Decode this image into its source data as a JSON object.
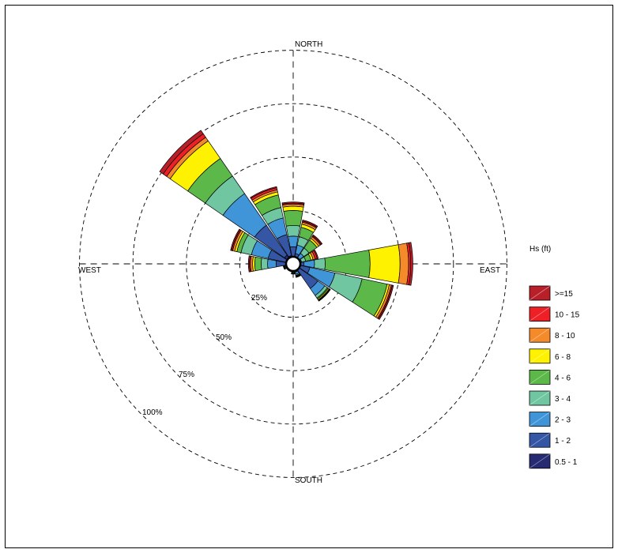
{
  "chart_data": {
    "type": "wind-rose",
    "directions": [
      "N",
      "NNE",
      "NE",
      "ENE",
      "E",
      "ESE",
      "SE",
      "SSE",
      "S",
      "SSW",
      "SW",
      "WSW",
      "W",
      "WNW",
      "NW",
      "NNW"
    ],
    "compass_labels": {
      "north": "NORTH",
      "east": "EAST",
      "south": "SOUTH",
      "west": "WEST"
    },
    "radial_ticks": [
      "25%",
      "50%",
      "75%",
      "100%"
    ],
    "rings": [
      25,
      50,
      75,
      100
    ],
    "legend": {
      "title": "Hs (ft)",
      "bins": [
        {
          "label": ">=15",
          "color": "#b81f29"
        },
        {
          "label": "10 - 15",
          "color": "#ee2026"
        },
        {
          "label": "8 - 10",
          "color": "#f58a2a"
        },
        {
          "label": "6 - 8",
          "color": "#fff200"
        },
        {
          "label": "4 - 6",
          "color": "#5cb848"
        },
        {
          "label": "3 - 4",
          "color": "#6fc6a0"
        },
        {
          "label": "2 - 3",
          "color": "#3f95d8"
        },
        {
          "label": "1 - 2",
          "color": "#3555a5"
        },
        {
          "label": "0.5 - 1",
          "color": "#262a72"
        }
      ]
    },
    "series_order_inner_to_outer": [
      "0.5 - 1",
      "1 - 2",
      "2 - 3",
      "3 - 4",
      "4 - 6",
      "6 - 8",
      "8 - 10",
      "10 - 15",
      ">=15"
    ],
    "cumulative_percent": {
      "N": [
        3,
        8,
        13,
        18,
        25,
        27,
        28,
        28.5,
        29
      ],
      "NNE": [
        2,
        5,
        9,
        13,
        17.5,
        19,
        20,
        20.5,
        21
      ],
      "NE": [
        1,
        3,
        6,
        9,
        13.5,
        14.5,
        15.5,
        16,
        16.5
      ],
      "ENE": [
        1,
        2,
        4,
        6,
        8.5,
        9.5,
        10.5,
        11.5,
        12
      ],
      "E": [
        2,
        5,
        10,
        15,
        36,
        50,
        54,
        55,
        56
      ],
      "ESE": [
        2,
        8,
        20,
        33,
        45,
        46,
        47,
        47.5,
        48
      ],
      "SE": [
        3,
        14,
        18,
        19.5,
        20,
        20.5,
        20.8,
        21,
        21.2
      ],
      "SSE": [
        2,
        4,
        5,
        5.5,
        5.8,
        6,
        6.2,
        6.4,
        6.5
      ],
      "S": [
        1.5,
        3,
        3.6,
        4,
        4.3,
        4.5,
        4.6,
        4.7,
        4.8
      ],
      "SSW": [
        1,
        2,
        2.5,
        3,
        3.3,
        3.5,
        3.6,
        3.7,
        3.8
      ],
      "SW": [
        1,
        2,
        2.5,
        3,
        3.3,
        3.5,
        3.6,
        3.7,
        3.8
      ],
      "WSW": [
        1,
        2,
        3,
        3.5,
        4,
        4.3,
        4.5,
        4.6,
        4.8
      ],
      "W": [
        3,
        8,
        12,
        15,
        18,
        19,
        20,
        20.5,
        21
      ],
      "WNW": [
        3,
        12,
        20,
        25,
        27,
        28,
        29,
        29.5,
        30
      ],
      "NW": [
        5,
        22,
        40,
        50,
        60,
        70,
        72,
        74,
        76
      ],
      "NNW": [
        4,
        14,
        22,
        27,
        33,
        34.5,
        35.5,
        36.5,
        37
      ]
    }
  }
}
